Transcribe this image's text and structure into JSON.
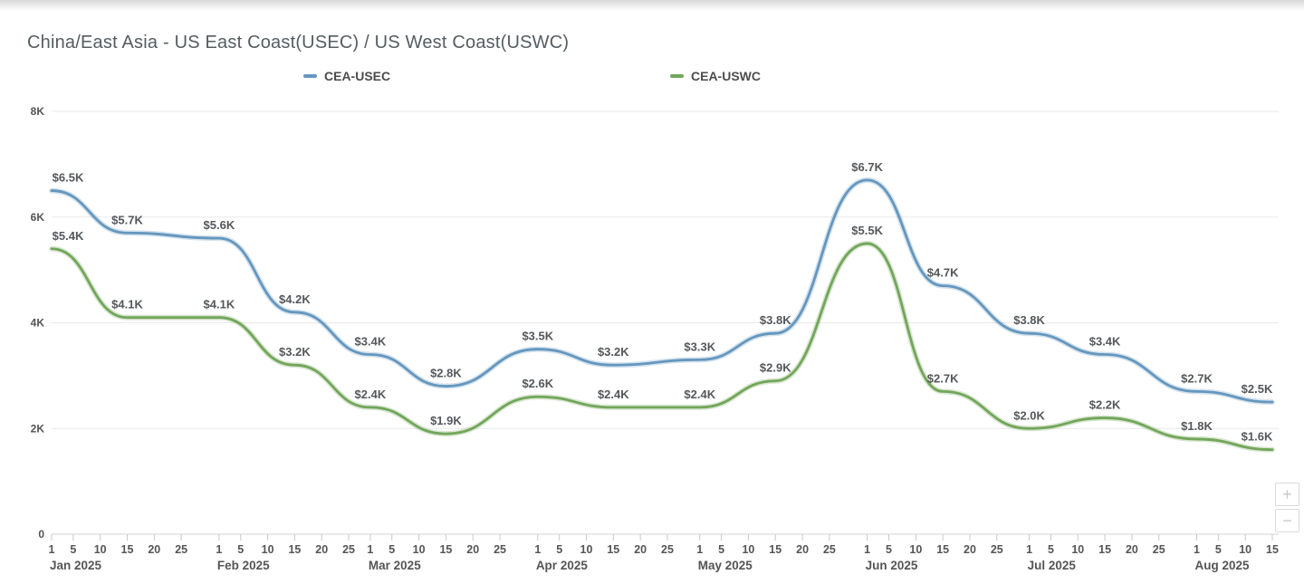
{
  "title": "China/East Asia - US East Coast(USEC) / US West Coast(USWC)",
  "legend": [
    {
      "label": "CEA-USEC",
      "color": "#6597be"
    },
    {
      "label": "CEA-USWC",
      "color": "#72a65a"
    }
  ],
  "zoom_controls": {
    "zoom_in_label": "+",
    "zoom_out_label": "−"
  },
  "colors": {
    "usec_line": "#6597be",
    "uswc_line": "#72a65a",
    "data_label": "#54585b",
    "axis_text": "#555555",
    "gridline": "#e9e9e9",
    "axis_line": "#d2d2d2",
    "tick_mark": "#c9c9c9"
  },
  "chart_data": {
    "type": "line",
    "title": "China/East Asia - US East Coast(USEC) / US West Coast(USWC)",
    "legend_position": "top",
    "grid": "horizontal",
    "ylim": [
      0,
      8000
    ],
    "x_total_days": 226,
    "x": [
      "Jan 1",
      "Jan 15",
      "Feb 1",
      "Feb 15",
      "Mar 1",
      "Mar 15",
      "Apr 1",
      "Apr 15",
      "May 1",
      "May 15",
      "Jun 1",
      "Jun 15",
      "Jul 1",
      "Jul 15",
      "Aug 1",
      "Aug 15"
    ],
    "x_day_index": [
      0,
      14,
      31,
      45,
      59,
      73,
      90,
      104,
      120,
      134,
      151,
      165,
      181,
      195,
      212,
      226
    ],
    "series": [
      {
        "name": "CEA-USEC",
        "color": "#6597be",
        "values": [
          6500,
          5700,
          5600,
          4200,
          3400,
          2800,
          3500,
          3200,
          3300,
          3800,
          6700,
          4700,
          3800,
          3400,
          2700,
          2500
        ],
        "labels": [
          "$6.5K",
          "$5.7K",
          "$5.6K",
          "$4.2K",
          "$3.4K",
          "$2.8K",
          "$3.5K",
          "$3.2K",
          "$3.3K",
          "$3.8K",
          "$6.7K",
          "$4.7K",
          "$3.8K",
          "$3.4K",
          "$2.7K",
          "$2.5K"
        ]
      },
      {
        "name": "CEA-USWC",
        "color": "#72a65a",
        "values": [
          5400,
          4100,
          4100,
          3200,
          2400,
          1900,
          2600,
          2400,
          2400,
          2900,
          5500,
          2700,
          2000,
          2200,
          1800,
          1600
        ],
        "labels": [
          "$5.4K",
          "$4.1K",
          "$4.1K",
          "$3.2K",
          "$2.4K",
          "$1.9K",
          "$2.6K",
          "$2.4K",
          "$2.4K",
          "$2.9K",
          "$5.5K",
          "$2.7K",
          "$2.0K",
          "$2.2K",
          "$1.8K",
          "$1.6K"
        ]
      }
    ],
    "y_ticks": [
      {
        "value": 0,
        "label": "0"
      },
      {
        "value": 2000,
        "label": "2K"
      },
      {
        "value": 4000,
        "label": "4K"
      },
      {
        "value": 6000,
        "label": "6K"
      },
      {
        "value": 8000,
        "label": "8K"
      }
    ],
    "x_ticks": [
      {
        "day": 0,
        "label": "1"
      },
      {
        "day": 4,
        "label": "5"
      },
      {
        "day": 9,
        "label": "10"
      },
      {
        "day": 14,
        "label": "15"
      },
      {
        "day": 19,
        "label": "20"
      },
      {
        "day": 24,
        "label": "25"
      },
      {
        "day": 31,
        "label": "1"
      },
      {
        "day": 35,
        "label": "5"
      },
      {
        "day": 40,
        "label": "10"
      },
      {
        "day": 45,
        "label": "15"
      },
      {
        "day": 50,
        "label": "20"
      },
      {
        "day": 55,
        "label": "25"
      },
      {
        "day": 59,
        "label": "1"
      },
      {
        "day": 63,
        "label": "5"
      },
      {
        "day": 68,
        "label": "10"
      },
      {
        "day": 73,
        "label": "15"
      },
      {
        "day": 78,
        "label": "20"
      },
      {
        "day": 83,
        "label": "25"
      },
      {
        "day": 90,
        "label": "1"
      },
      {
        "day": 94,
        "label": "5"
      },
      {
        "day": 99,
        "label": "10"
      },
      {
        "day": 104,
        "label": "15"
      },
      {
        "day": 109,
        "label": "20"
      },
      {
        "day": 114,
        "label": "25"
      },
      {
        "day": 120,
        "label": "1"
      },
      {
        "day": 124,
        "label": "5"
      },
      {
        "day": 129,
        "label": "10"
      },
      {
        "day": 134,
        "label": "15"
      },
      {
        "day": 139,
        "label": "20"
      },
      {
        "day": 144,
        "label": "25"
      },
      {
        "day": 151,
        "label": "1"
      },
      {
        "day": 155,
        "label": "5"
      },
      {
        "day": 160,
        "label": "10"
      },
      {
        "day": 165,
        "label": "15"
      },
      {
        "day": 170,
        "label": "20"
      },
      {
        "day": 175,
        "label": "25"
      },
      {
        "day": 181,
        "label": "1"
      },
      {
        "day": 185,
        "label": "5"
      },
      {
        "day": 190,
        "label": "10"
      },
      {
        "day": 195,
        "label": "15"
      },
      {
        "day": 200,
        "label": "20"
      },
      {
        "day": 205,
        "label": "25"
      },
      {
        "day": 212,
        "label": "1"
      },
      {
        "day": 216,
        "label": "5"
      },
      {
        "day": 221,
        "label": "10"
      },
      {
        "day": 226,
        "label": "15"
      }
    ],
    "month_labels": [
      {
        "day": 0,
        "label": "Jan 2025"
      },
      {
        "day": 31,
        "label": "Feb 2025"
      },
      {
        "day": 59,
        "label": "Mar 2025"
      },
      {
        "day": 90,
        "label": "Apr 2025"
      },
      {
        "day": 120,
        "label": "May 2025"
      },
      {
        "day": 151,
        "label": "Jun 2025"
      },
      {
        "day": 181,
        "label": "Jul 2025"
      },
      {
        "day": 212,
        "label": "Aug 2025"
      }
    ]
  }
}
